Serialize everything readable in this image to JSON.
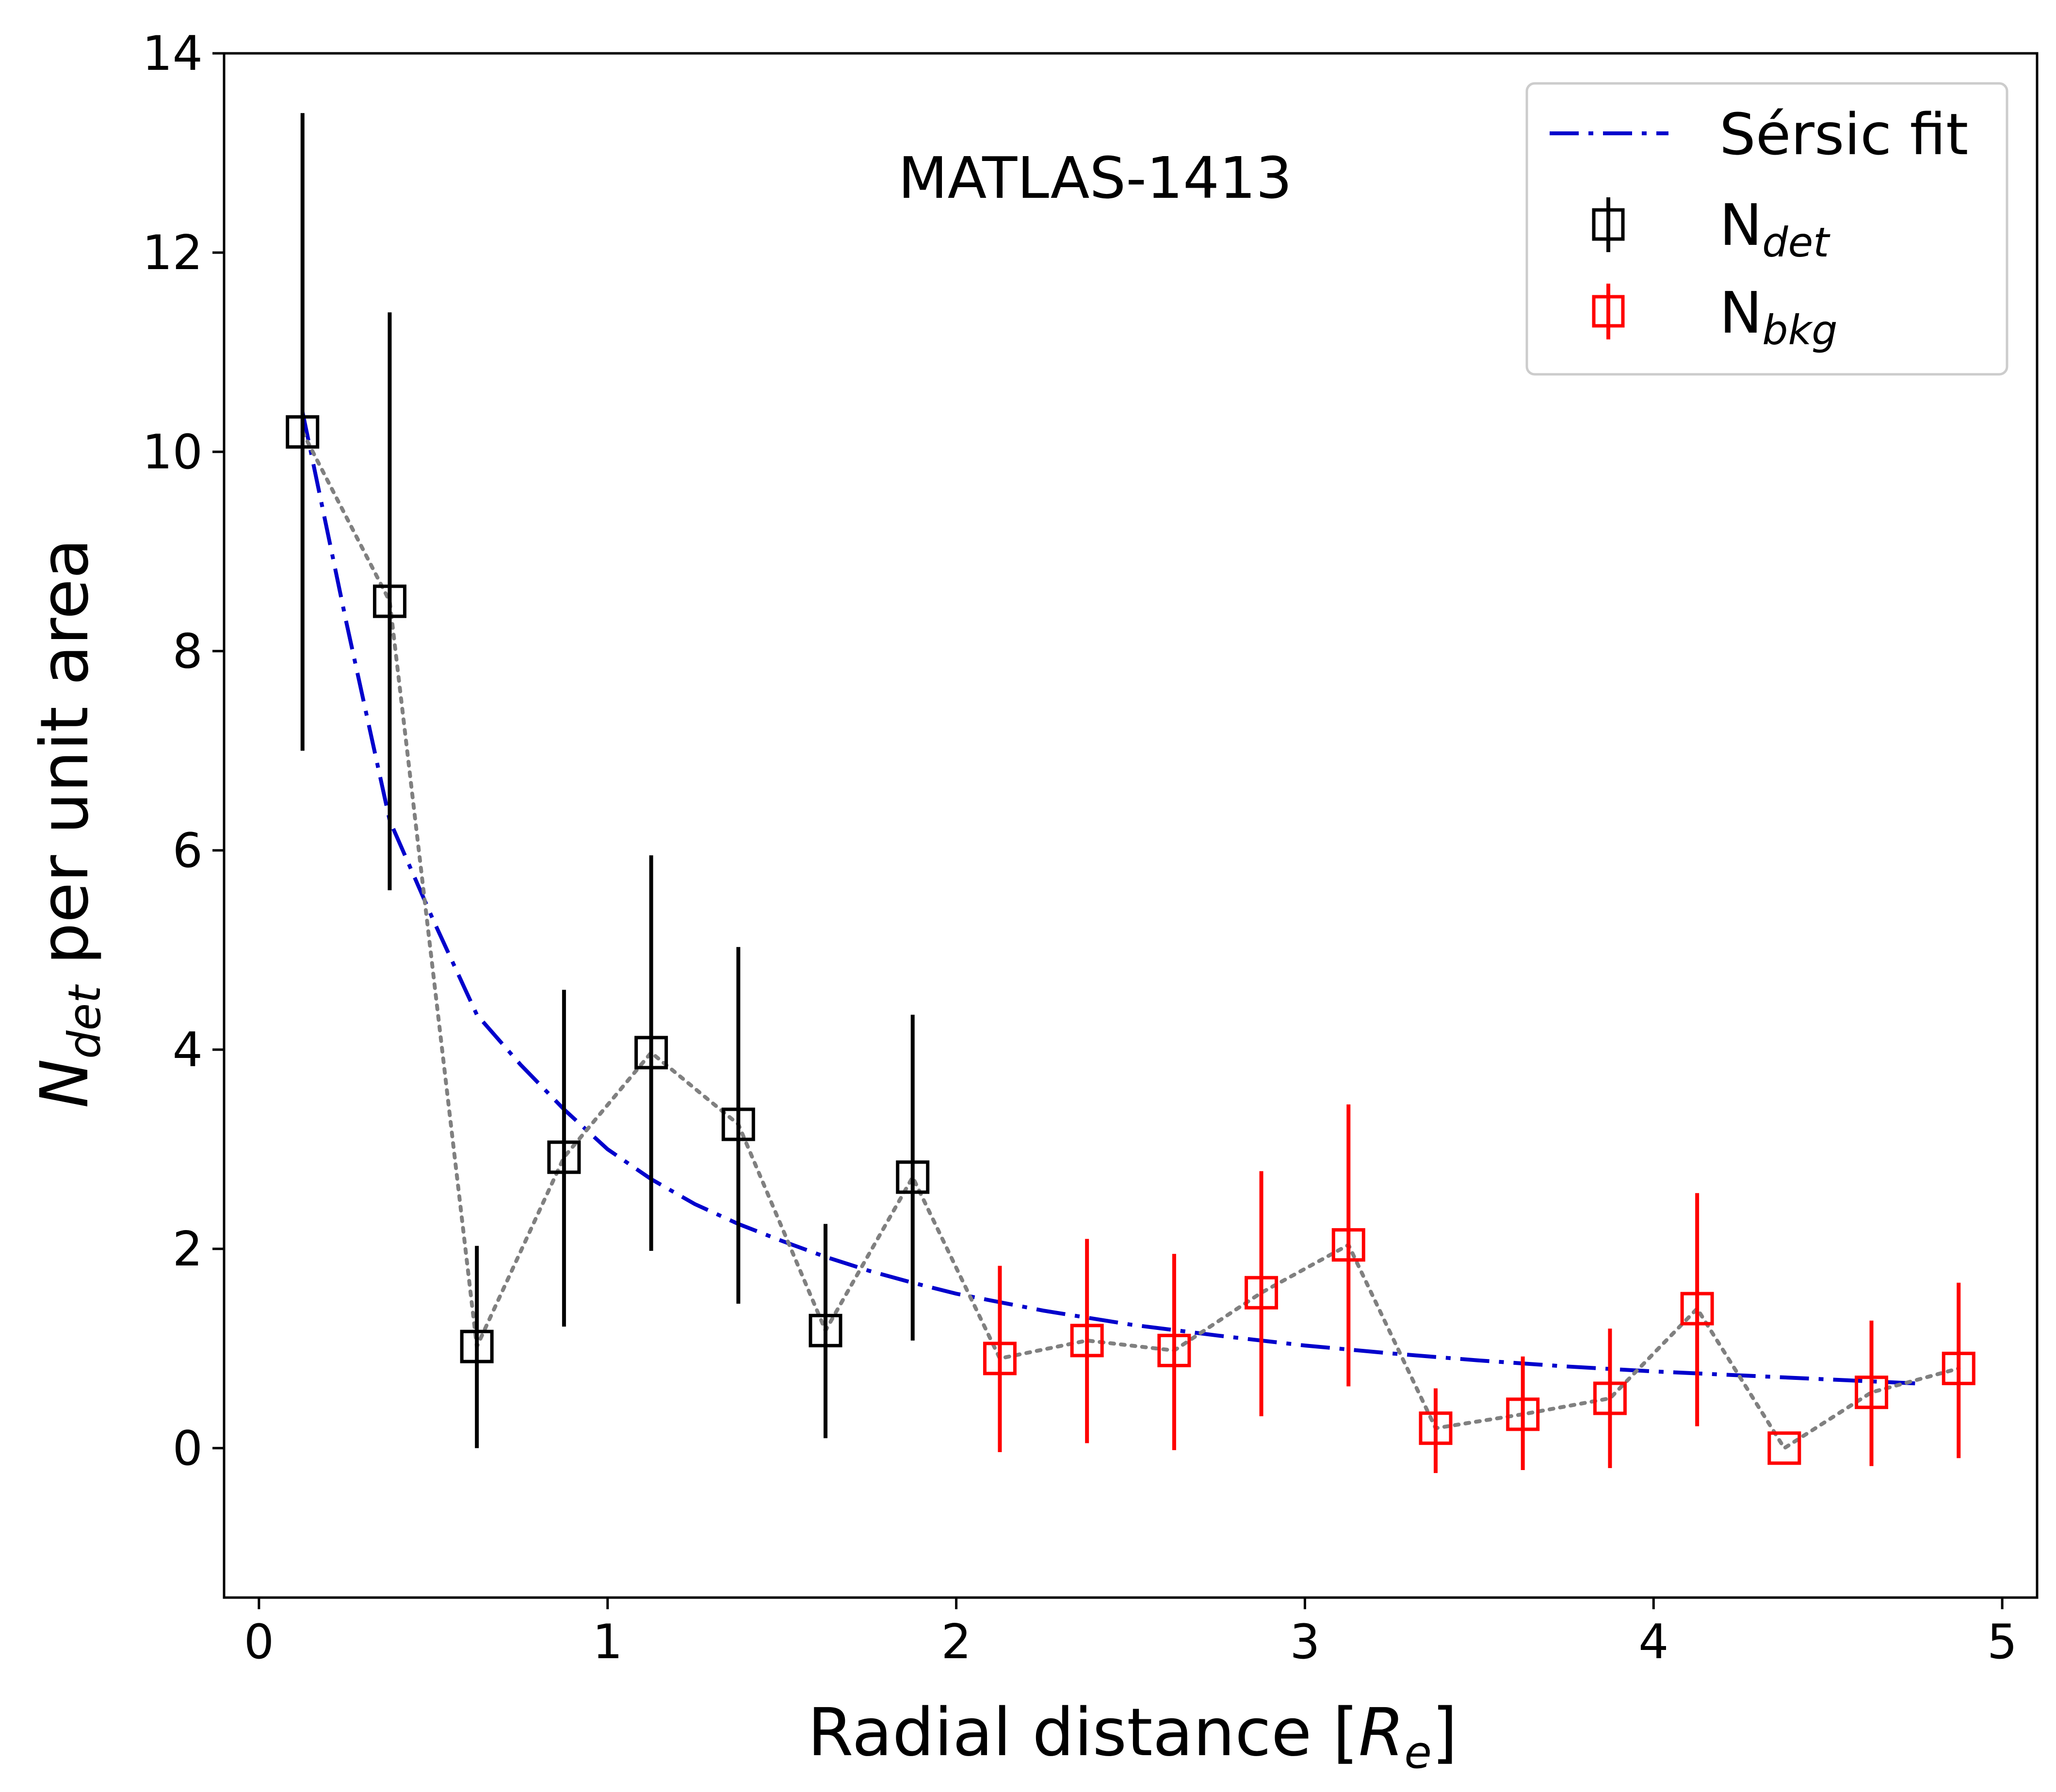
{
  "chart_data": {
    "type": "scatter",
    "title": "",
    "annotation": "MATLAS-1413",
    "xlabel": {
      "main": "Radial distance [",
      "italic": "R",
      "sub": "e",
      "tail": "]"
    },
    "ylabel": {
      "italic": "N",
      "sub": "det",
      "tail": " per unit area"
    },
    "xlim": [
      -0.1,
      5.1
    ],
    "ylim": [
      -1.5,
      14
    ],
    "xticks": [
      0,
      1,
      2,
      3,
      4,
      5
    ],
    "yticks": [
      0,
      2,
      4,
      6,
      8,
      10,
      12,
      14
    ],
    "grid": false,
    "legend_position": "top-right",
    "legend": [
      {
        "label": "Sérsic fit",
        "style": "dashdot",
        "color": "#0000CC"
      },
      {
        "label": "N",
        "sub": "det",
        "style": "errorbar-square",
        "color": "#000000"
      },
      {
        "label": "N",
        "sub": "bkg",
        "style": "errorbar-square",
        "color": "#FF0000"
      }
    ],
    "series": [
      {
        "name": "N_det",
        "color": "#000000",
        "x": [
          0.125,
          0.375,
          0.625,
          0.875,
          1.125,
          1.375,
          1.625,
          1.875
        ],
        "y": [
          10.2,
          8.5,
          1.02,
          2.92,
          3.97,
          3.25,
          1.18,
          2.72
        ],
        "yerr_low": [
          7.0,
          5.6,
          0.0,
          1.22,
          1.98,
          1.45,
          0.1,
          1.08
        ],
        "yerr_high": [
          13.4,
          11.4,
          2.03,
          4.6,
          5.95,
          5.03,
          2.25,
          4.35
        ]
      },
      {
        "name": "N_bkg",
        "color": "#FF0000",
        "x": [
          2.125,
          2.375,
          2.625,
          2.875,
          3.125,
          3.375,
          3.625,
          3.875,
          4.125,
          4.375,
          4.625,
          4.875
        ],
        "y": [
          0.9,
          1.08,
          0.98,
          1.56,
          2.04,
          0.2,
          0.34,
          0.5,
          1.4,
          0.0,
          0.56,
          0.8
        ],
        "yerr_low": [
          -0.04,
          0.05,
          -0.02,
          0.32,
          0.62,
          -0.25,
          -0.22,
          -0.2,
          0.22,
          0.0,
          -0.18,
          -0.1
        ],
        "yerr_high": [
          1.83,
          2.1,
          1.95,
          2.78,
          3.45,
          0.6,
          0.92,
          1.2,
          2.56,
          0.0,
          1.28,
          1.66
        ]
      },
      {
        "name": "Sérsic fit",
        "color": "#0000CC",
        "x": [
          0.125,
          0.25,
          0.375,
          0.5,
          0.625,
          0.75,
          0.875,
          1.0,
          1.125,
          1.25,
          1.375,
          1.5,
          1.625,
          1.75,
          1.875,
          2.0,
          2.25,
          2.5,
          2.75,
          3.0,
          3.25,
          3.5,
          3.75,
          4.0,
          4.25,
          4.5,
          4.75
        ],
        "y": [
          10.4,
          8.3,
          6.3,
          5.3,
          4.35,
          3.85,
          3.4,
          3.0,
          2.7,
          2.45,
          2.25,
          2.08,
          1.92,
          1.78,
          1.66,
          1.55,
          1.38,
          1.24,
          1.13,
          1.03,
          0.95,
          0.88,
          0.82,
          0.77,
          0.73,
          0.69,
          0.65
        ]
      }
    ]
  }
}
